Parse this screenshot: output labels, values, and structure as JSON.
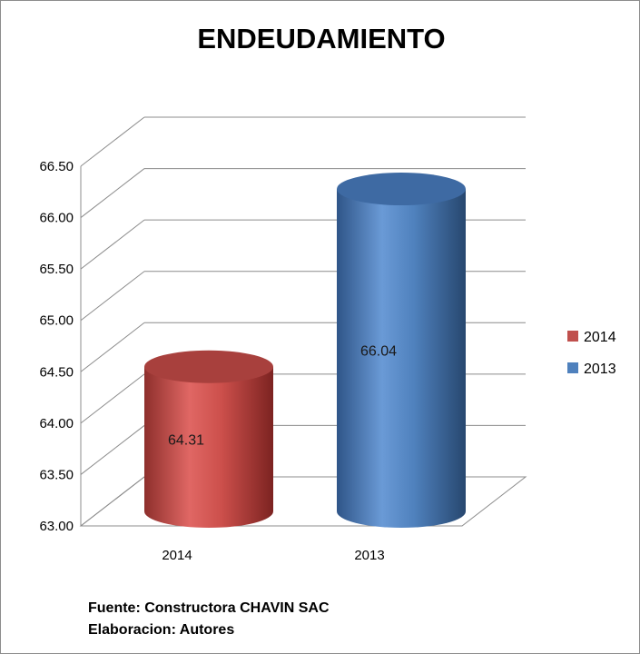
{
  "chart_data": {
    "type": "bar",
    "style": "3d-cylinder",
    "title": "ENDEUDAMIENTO",
    "categories": [
      "2014",
      "2013"
    ],
    "series": [
      {
        "name": "2014",
        "values": [
          64.31,
          null
        ],
        "color": "#c0504d"
      },
      {
        "name": "2013",
        "values": [
          null,
          66.04
        ],
        "color": "#4f81bd"
      }
    ],
    "data_labels": [
      "64.31",
      "66.04"
    ],
    "ylim": [
      63.0,
      66.5
    ],
    "yticks": [
      "63.00",
      "63.50",
      "64.00",
      "64.50",
      "65.00",
      "65.50",
      "66.00",
      "66.50"
    ],
    "grid": true,
    "legend_position": "right"
  },
  "source_note": {
    "line1": "Fuente: Constructora  CHAVIN SAC",
    "line2": "Elaboracion: Autores"
  }
}
